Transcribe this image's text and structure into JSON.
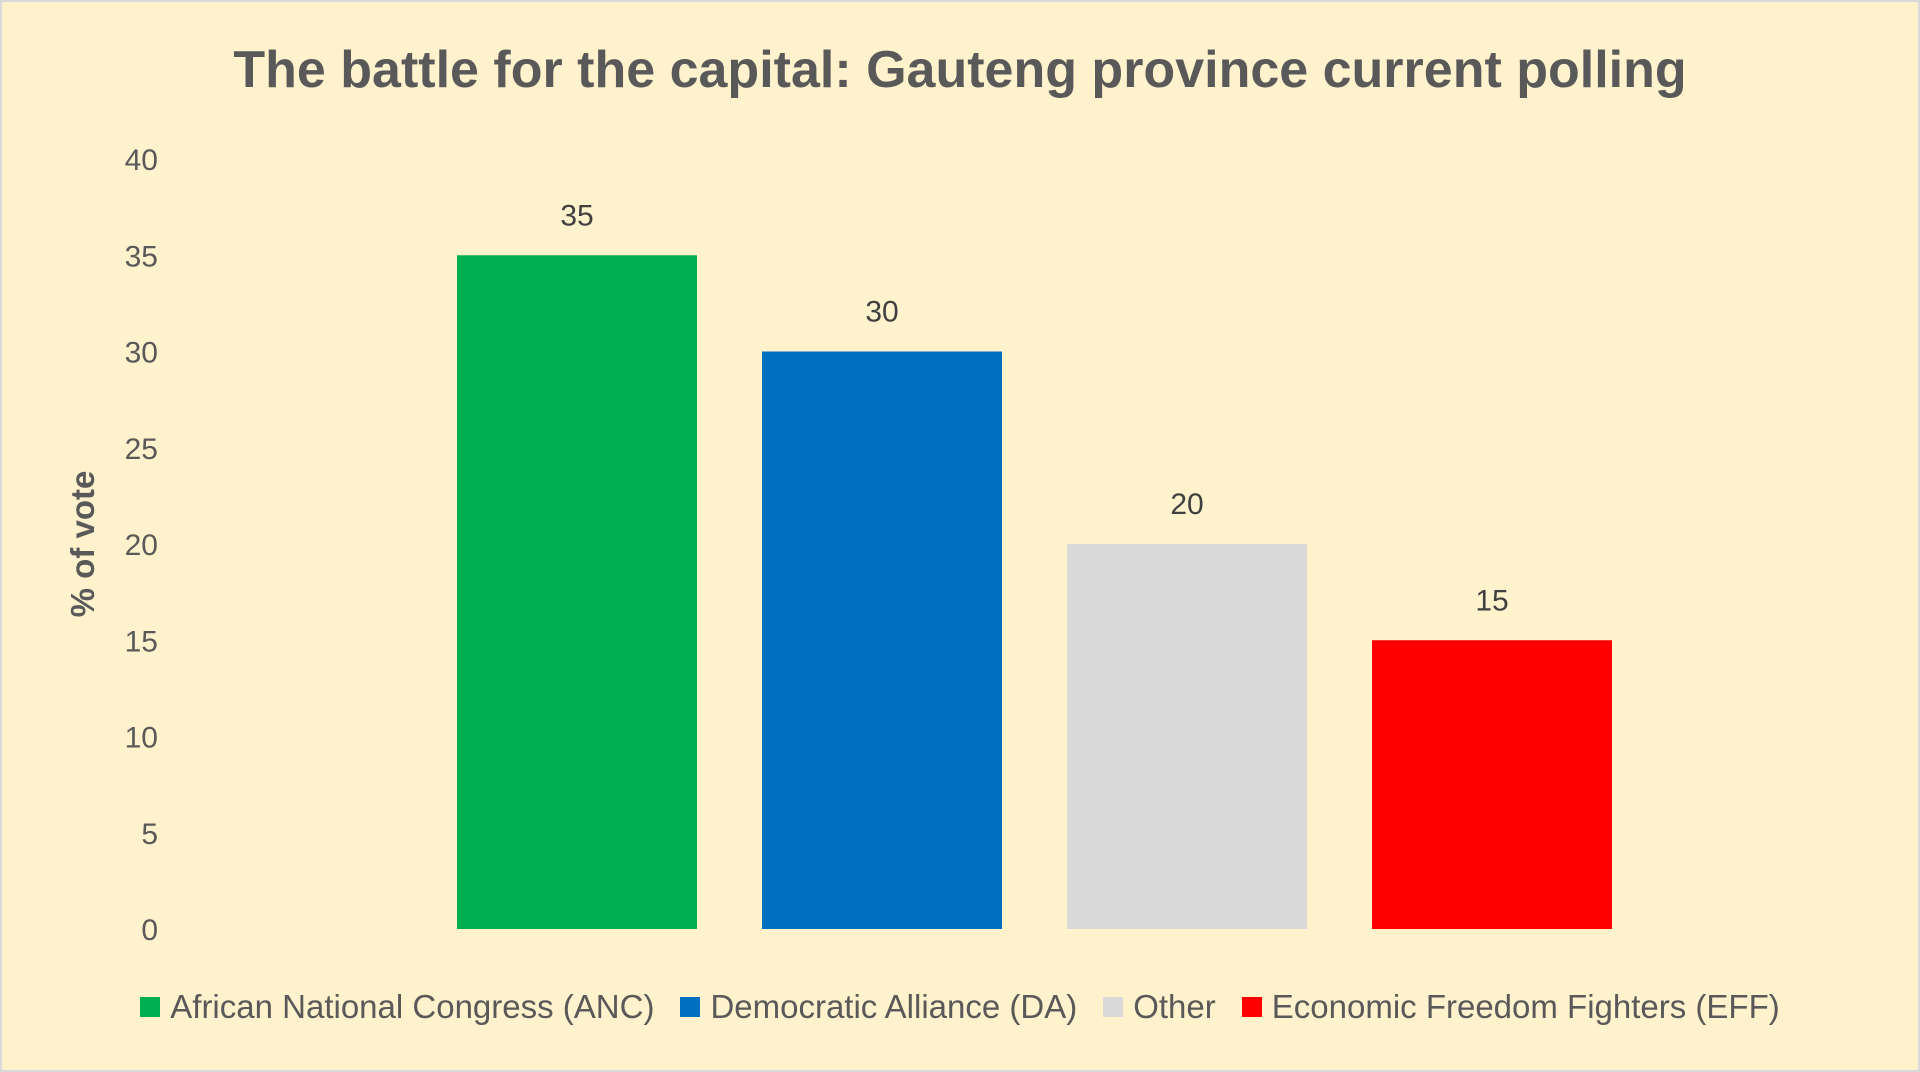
{
  "chart_data": {
    "type": "bar",
    "title": "The battle for the capital: Gauteng province current polling",
    "ylabel": "% of vote",
    "xlabel": "",
    "ylim": [
      0,
      40
    ],
    "yticks": [
      0,
      5,
      10,
      15,
      20,
      25,
      30,
      35,
      40
    ],
    "grid": false,
    "legend_position": "bottom",
    "categories": [
      "African National Congress (ANC)",
      "Democratic Alliance (DA)",
      "Other",
      "Economic Freedom Fighters (EFF)"
    ],
    "values": [
      35,
      30,
      20,
      15
    ],
    "colors": [
      "#00b050",
      "#0070c0",
      "#d9d9d9",
      "#ff0000"
    ],
    "data_labels": [
      "35",
      "30",
      "20",
      "15"
    ]
  },
  "style": {
    "background": "#fff2cc",
    "text_color": "#595959"
  }
}
